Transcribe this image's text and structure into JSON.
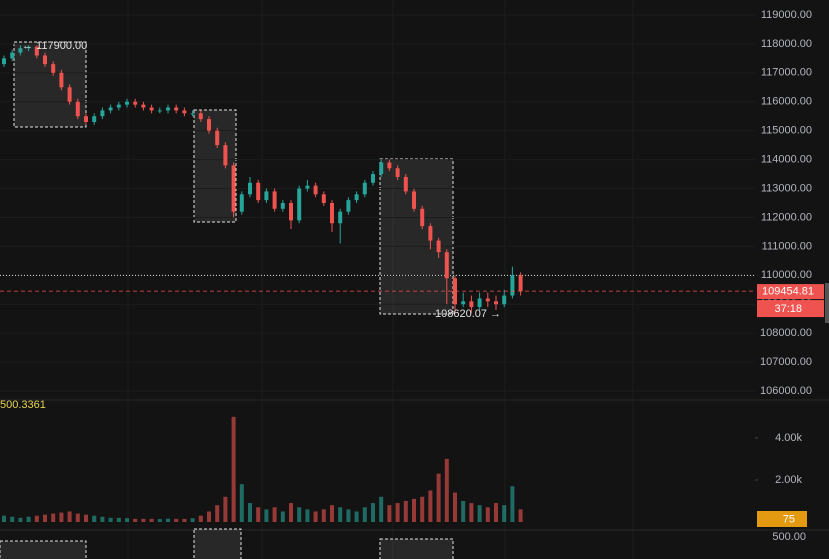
{
  "chart_data": {
    "type": "candlestick",
    "up_color": "#26a69a",
    "down_color": "#ef5350",
    "open": [
      117300,
      117500,
      117700,
      117850,
      117900,
      117600,
      117300,
      117000,
      116500,
      116000,
      115500,
      115300,
      115500,
      115700,
      115800,
      115900,
      116000,
      115900,
      115800,
      115700,
      115700,
      115800,
      115700,
      115600,
      115600,
      115400,
      115000,
      114500,
      113800,
      112200,
      112800,
      113200,
      112600,
      112900,
      112300,
      112500,
      111900,
      113000,
      113100,
      112800,
      112500,
      111800,
      112200,
      112600,
      112800,
      113200,
      113500,
      113900,
      113700,
      113400,
      112900,
      112300,
      111700,
      111200,
      110800,
      109900,
      109000,
      109100,
      108900,
      109200,
      109100,
      109000,
      109300,
      110000
    ],
    "high": [
      117600,
      117800,
      117950,
      117950,
      117950,
      117700,
      117400,
      117100,
      116600,
      116100,
      115600,
      115600,
      115800,
      115900,
      116000,
      116100,
      116100,
      116000,
      115900,
      115800,
      115900,
      115900,
      115800,
      115700,
      115700,
      115500,
      115100,
      114600,
      113900,
      112900,
      113400,
      113300,
      113000,
      113000,
      112600,
      112600,
      113100,
      113300,
      113200,
      112900,
      112600,
      112300,
      112700,
      112900,
      113300,
      113600,
      114000,
      114000,
      113800,
      113500,
      113000,
      112400,
      111800,
      111300,
      110900,
      110000,
      109400,
      109300,
      109400,
      109400,
      109300,
      109500,
      110300,
      110100
    ],
    "low": [
      117200,
      117400,
      117600,
      117750,
      117500,
      117200,
      116900,
      116400,
      115900,
      115400,
      115200,
      115200,
      115400,
      115600,
      115700,
      115800,
      115800,
      115700,
      115600,
      115600,
      115600,
      115600,
      115500,
      115500,
      115300,
      114900,
      114400,
      113700,
      112000,
      112100,
      112700,
      112500,
      112500,
      112200,
      112200,
      111600,
      111800,
      112900,
      112700,
      112400,
      111500,
      111100,
      112100,
      112500,
      112700,
      113100,
      113400,
      113600,
      113300,
      112800,
      112200,
      111600,
      110900,
      110600,
      109000,
      108700,
      108900,
      108700,
      108800,
      108900,
      108800,
      108900,
      109200,
      109300
    ],
    "close": [
      117500,
      117700,
      117850,
      117900,
      117600,
      117300,
      117000,
      116500,
      116000,
      115500,
      115300,
      115500,
      115700,
      115800,
      115900,
      116000,
      115900,
      115800,
      115700,
      115700,
      115800,
      115700,
      115600,
      115600,
      115400,
      115000,
      114500,
      113800,
      112200,
      112800,
      113200,
      112600,
      112900,
      112300,
      112500,
      111900,
      113000,
      113100,
      112800,
      112500,
      111800,
      112200,
      112600,
      112800,
      113200,
      113500,
      113900,
      113700,
      113400,
      112900,
      112300,
      111700,
      111200,
      110800,
      109900,
      109000,
      109100,
      108900,
      109200,
      109100,
      109000,
      109300,
      110000,
      109454.81
    ],
    "ylim": [
      105690,
      119517
    ],
    "yticks": [
      {
        "value": 119000,
        "label": "119000.00"
      },
      {
        "value": 118000,
        "label": "118000.00"
      },
      {
        "value": 117000,
        "label": "117000.00"
      },
      {
        "value": 116000,
        "label": "116000.00"
      },
      {
        "value": 115000,
        "label": "115000.00"
      },
      {
        "value": 114000,
        "label": "114000.00"
      },
      {
        "value": 113000,
        "label": "113000.00"
      },
      {
        "value": 112000,
        "label": "112000.00"
      },
      {
        "value": 111000,
        "label": "111000.00"
      },
      {
        "value": 110000,
        "label": "110000.00"
      },
      {
        "value": 109000,
        "label": "109000.00"
      },
      {
        "value": 108000,
        "label": "108000.00"
      },
      {
        "value": 107000,
        "label": "107000.00"
      },
      {
        "value": 106000,
        "label": "106000.00"
      }
    ],
    "horizontal_line": 110000,
    "last_price": {
      "value": 109454.81,
      "label": "109454.81"
    },
    "countdown": "37:18",
    "annotations": [
      "← 117900.00",
      "108620.07 →"
    ],
    "volume": {
      "values": [
        300,
        250,
        200,
        250,
        300,
        350,
        400,
        450,
        500,
        400,
        350,
        300,
        250,
        200,
        200,
        180,
        150,
        150,
        150,
        140,
        160,
        150,
        150,
        180,
        300,
        500,
        800,
        1200,
        5000,
        1800,
        900,
        700,
        600,
        700,
        500,
        900,
        700,
        600,
        500,
        600,
        800,
        700,
        600,
        500,
        700,
        900,
        1200,
        800,
        900,
        1000,
        1100,
        1200,
        1500,
        2300,
        3000,
        1400,
        1000,
        900,
        800,
        700,
        900,
        800,
        1700,
        600
      ],
      "ylim": [
        0,
        5800
      ],
      "yticks": [
        {
          "value": 4000,
          "label": "4.00k"
        },
        {
          "value": 2000,
          "label": "2.00k"
        }
      ],
      "legend_value": "500.3361",
      "badge": "75"
    },
    "lower_pane_tick": "500.00"
  }
}
